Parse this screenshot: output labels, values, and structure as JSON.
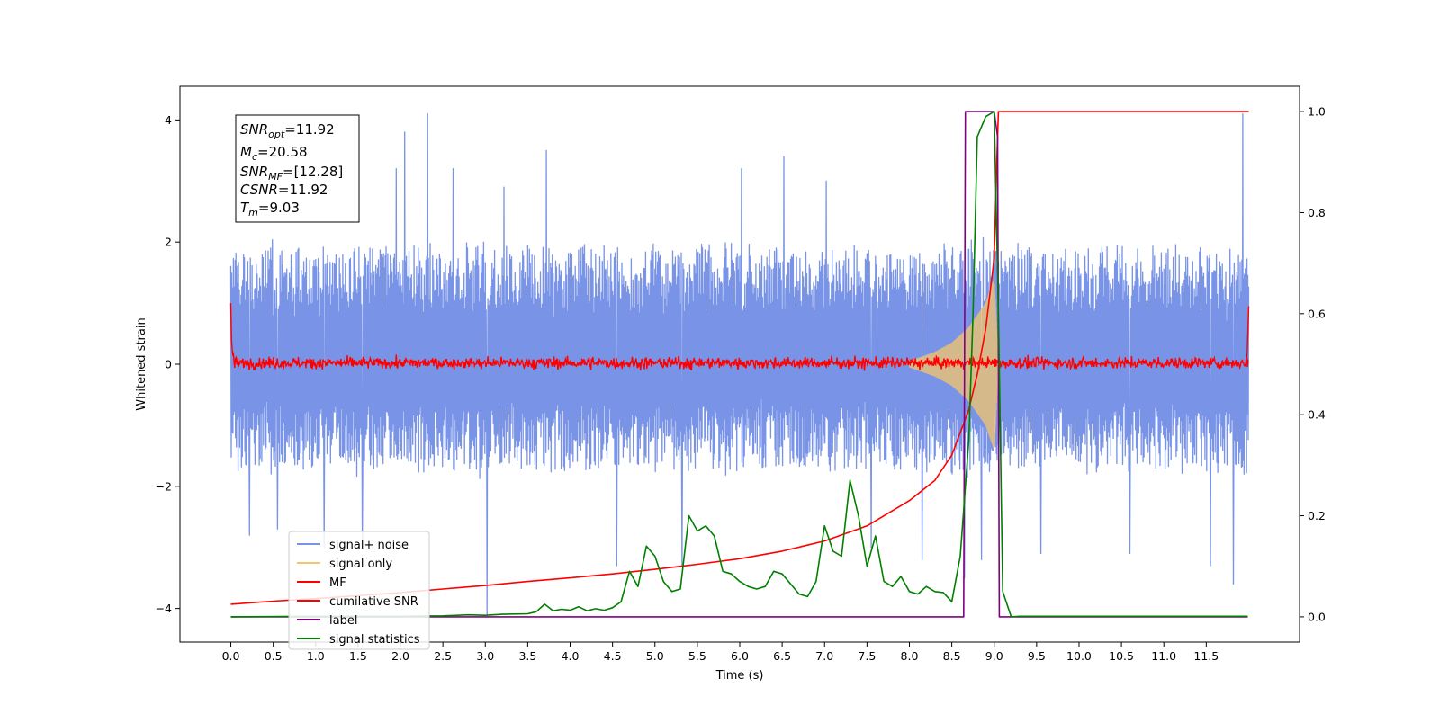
{
  "chart_data": {
    "type": "line",
    "xlabel": "Time (s)",
    "ylabel": "Whitened strain",
    "xlim": [
      -0.6,
      12.6
    ],
    "ylim": [
      -4.55,
      4.55
    ],
    "y2lim": [
      -0.05,
      1.05
    ],
    "x_ticks": [
      0.0,
      0.5,
      1.0,
      1.5,
      2.0,
      2.5,
      3.0,
      3.5,
      4.0,
      4.5,
      5.0,
      5.5,
      6.0,
      6.5,
      7.0,
      7.5,
      8.0,
      8.5,
      9.0,
      9.5,
      10.0,
      10.5,
      11.0,
      11.5
    ],
    "x_tick_labels": [
      "0.0",
      "0.5",
      "1.0",
      "1.5",
      "2.0",
      "2.5",
      "3.0",
      "3.5",
      "4.0",
      "4.5",
      "5.0",
      "5.5",
      "6.0",
      "6.5",
      "7.0",
      "7.5",
      "8.0",
      "8.5",
      "9.0",
      "9.5",
      "10.0",
      "10.5",
      "11.0",
      "11.5"
    ],
    "y_ticks": [
      -4,
      -2,
      0,
      2,
      4
    ],
    "y_tick_labels": [
      "−4",
      "−2",
      "0",
      "2",
      "4"
    ],
    "y2_ticks": [
      0.0,
      0.2,
      0.4,
      0.6,
      0.8,
      1.0
    ],
    "y2_tick_labels": [
      "0.0",
      "0.2",
      "0.4",
      "0.6",
      "0.8",
      "1.0"
    ],
    "legend_position": "lower-left",
    "annotation": {
      "snr_opt": "=11.92",
      "mc": "=20.58",
      "snr_mf": "=[12.28]",
      "csnr": "=11.92",
      "tm": "=9.03"
    },
    "series": [
      {
        "name": "signal+ noise",
        "axis": "left",
        "color": "#7994e6",
        "style": "noise",
        "x_range": [
          0.0,
          12.0
        ],
        "typical_range": [
          -1.7,
          1.9
        ],
        "spikes": [
          [
            0.05,
            1.7
          ],
          [
            0.22,
            -2.8
          ],
          [
            0.55,
            -2.7
          ],
          [
            1.1,
            -3.0
          ],
          [
            1.55,
            -2.9
          ],
          [
            1.95,
            3.2
          ],
          [
            2.05,
            3.8
          ],
          [
            2.32,
            4.1
          ],
          [
            2.62,
            3.2
          ],
          [
            3.02,
            -4.1
          ],
          [
            3.22,
            2.9
          ],
          [
            3.72,
            3.5
          ],
          [
            4.55,
            -3.3
          ],
          [
            5.32,
            -3.3
          ],
          [
            6.02,
            3.2
          ],
          [
            6.52,
            3.4
          ],
          [
            7.02,
            3.0
          ],
          [
            7.55,
            -3.0
          ],
          [
            8.15,
            -3.2
          ],
          [
            8.65,
            -3.5
          ],
          [
            8.85,
            -3.2
          ],
          [
            9.55,
            -3.1
          ],
          [
            10.6,
            -3.1
          ],
          [
            11.55,
            -3.3
          ],
          [
            11.82,
            -3.6
          ],
          [
            11.93,
            4.1
          ]
        ]
      },
      {
        "name": "signal only",
        "axis": "left",
        "color": "#f5c56b",
        "style": "chirp",
        "x_range": [
          8.0,
          9.1
        ],
        "points": [
          [
            8.0,
            0.05
          ],
          [
            8.3,
            0.2
          ],
          [
            8.5,
            0.35
          ],
          [
            8.7,
            0.6
          ],
          [
            8.9,
            1.0
          ],
          [
            9.0,
            1.4
          ],
          [
            9.05,
            0.0
          ]
        ]
      },
      {
        "name": "MF",
        "axis": "left",
        "color": "#ff0000",
        "style": "noise",
        "x_range": [
          0.0,
          12.0
        ],
        "typical_range": [
          -0.08,
          0.12
        ],
        "edges": [
          [
            0.0,
            1.0
          ],
          [
            12.0,
            0.95
          ]
        ]
      },
      {
        "name": "cumilative SNR",
        "axis": "right",
        "color": "#ff0000",
        "x": [
          0.0,
          0.5,
          1.0,
          1.5,
          2.0,
          2.5,
          3.0,
          3.5,
          4.0,
          4.5,
          5.0,
          5.5,
          6.0,
          6.5,
          7.0,
          7.5,
          8.0,
          8.3,
          8.5,
          8.7,
          8.8,
          8.9,
          9.0,
          9.03,
          9.05,
          12.0
        ],
        "values": [
          0.025,
          0.031,
          0.036,
          0.042,
          0.048,
          0.055,
          0.062,
          0.07,
          0.077,
          0.085,
          0.094,
          0.104,
          0.115,
          0.13,
          0.15,
          0.18,
          0.23,
          0.27,
          0.32,
          0.41,
          0.48,
          0.57,
          0.71,
          0.9,
          1.0,
          1.0
        ]
      },
      {
        "name": "label",
        "axis": "right",
        "color": "#800080",
        "x": [
          0.0,
          8.64,
          8.66,
          9.0,
          9.04,
          9.06,
          11.99
        ],
        "values": [
          0.0,
          0.0,
          1.0,
          1.0,
          0.95,
          0.0,
          0.0
        ]
      },
      {
        "name": "signal statistics",
        "axis": "right",
        "color": "#008000",
        "x": [
          0.0,
          1.0,
          2.0,
          2.5,
          2.8,
          3.0,
          3.2,
          3.5,
          3.6,
          3.7,
          3.8,
          3.9,
          4.0,
          4.1,
          4.2,
          4.3,
          4.4,
          4.5,
          4.6,
          4.7,
          4.8,
          4.9,
          5.0,
          5.1,
          5.2,
          5.3,
          5.4,
          5.5,
          5.6,
          5.7,
          5.8,
          5.9,
          6.0,
          6.1,
          6.2,
          6.3,
          6.4,
          6.5,
          6.6,
          6.7,
          6.8,
          6.9,
          7.0,
          7.1,
          7.2,
          7.3,
          7.4,
          7.5,
          7.6,
          7.7,
          7.8,
          7.9,
          8.0,
          8.1,
          8.2,
          8.3,
          8.4,
          8.5,
          8.6,
          8.7,
          8.75,
          8.8,
          8.9,
          9.0,
          9.05,
          9.1,
          9.2,
          9.3,
          11.99
        ],
        "values": [
          0.0,
          0.001,
          0.001,
          0.002,
          0.004,
          0.003,
          0.005,
          0.006,
          0.01,
          0.025,
          0.012,
          0.015,
          0.013,
          0.02,
          0.012,
          0.016,
          0.013,
          0.018,
          0.03,
          0.09,
          0.06,
          0.14,
          0.12,
          0.07,
          0.05,
          0.055,
          0.2,
          0.17,
          0.18,
          0.16,
          0.09,
          0.085,
          0.07,
          0.06,
          0.055,
          0.06,
          0.09,
          0.085,
          0.065,
          0.045,
          0.04,
          0.07,
          0.18,
          0.13,
          0.12,
          0.27,
          0.2,
          0.1,
          0.16,
          0.07,
          0.06,
          0.08,
          0.05,
          0.045,
          0.06,
          0.05,
          0.048,
          0.03,
          0.12,
          0.35,
          0.6,
          0.95,
          0.99,
          1.0,
          0.6,
          0.05,
          0.0,
          0.001,
          0.001
        ]
      }
    ]
  }
}
